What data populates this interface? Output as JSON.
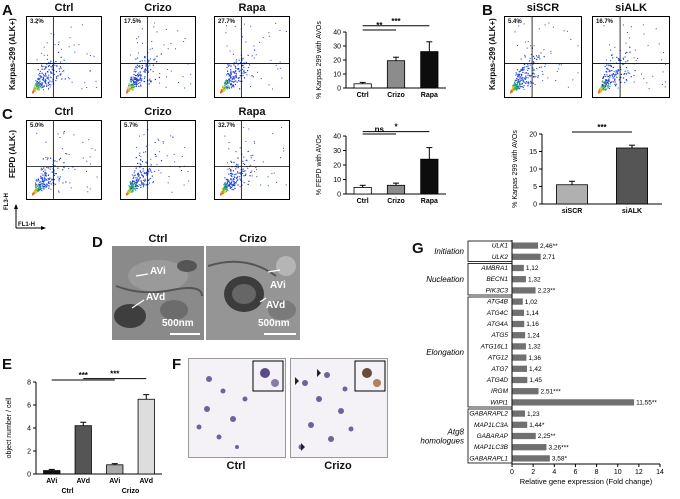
{
  "panels": {
    "A": {
      "label": "A",
      "ylabel": "Karpas-299 (ALK+)",
      "plots": [
        {
          "title": "Ctrl",
          "percent": "3.2%"
        },
        {
          "title": "Crizo",
          "percent": "17.5%"
        },
        {
          "title": "Rapa",
          "percent": "27.7%"
        }
      ]
    },
    "B": {
      "label": "B",
      "ylabel": "Karpas-299 (ALK+)",
      "plots": [
        {
          "title": "siSCR",
          "percent": "5.4%"
        },
        {
          "title": "siALK",
          "percent": "16.7%"
        }
      ]
    },
    "C": {
      "label": "C",
      "ylabel": "FEPD (ALK-)",
      "plots": [
        {
          "title": "Ctrl",
          "percent": "5.0%"
        },
        {
          "title": "Crizo",
          "percent": "5.7%"
        },
        {
          "title": "Rapa",
          "percent": "32.7%"
        }
      ]
    },
    "axes": {
      "y": "FL3-H",
      "x": "FL1-H"
    },
    "D": {
      "label": "D",
      "images": [
        {
          "title": "Ctrl",
          "arrow1": "AVi",
          "arrow2": "AVd",
          "scale": "500nm"
        },
        {
          "title": "Crizo",
          "arrow1": "AVi",
          "arrow2": "AVd",
          "scale": "500nm"
        }
      ]
    },
    "E": {
      "label": "E"
    },
    "F": {
      "label": "F",
      "images": [
        {
          "title": "Ctrl"
        },
        {
          "title": "Crizo"
        }
      ]
    },
    "G": {
      "label": "G"
    }
  },
  "chart_data": [
    {
      "id": "A",
      "type": "bar",
      "categories": [
        "Ctrl",
        "Crizo",
        "Rapa"
      ],
      "values": [
        3,
        19.5,
        26
      ],
      "errors": [
        1,
        2.5,
        7
      ],
      "colors": [
        "#ffffff",
        "#8c8c8c",
        "#0d0d0d"
      ],
      "ylabel": "% Karpas 299 with AVOs",
      "ylim": [
        0,
        40
      ],
      "yticks": [
        0,
        10,
        20,
        30,
        40
      ],
      "significance": [
        {
          "from": 0,
          "to": 1,
          "label": "**"
        },
        {
          "from": 0,
          "to": 2,
          "label": "***"
        }
      ]
    },
    {
      "id": "B",
      "type": "bar",
      "categories": [
        "siSCR",
        "siALK"
      ],
      "values": [
        5.5,
        16
      ],
      "errors": [
        1,
        0.8
      ],
      "colors": [
        "#b0b0b0",
        "#555555"
      ],
      "ylabel": "% Karpas 299 with AVOs",
      "ylim": [
        0,
        20
      ],
      "yticks": [
        0,
        5,
        10,
        15,
        20
      ],
      "significance": [
        {
          "from": 0,
          "to": 1,
          "label": "***"
        }
      ]
    },
    {
      "id": "C",
      "type": "bar",
      "categories": [
        "Ctrl",
        "Crizo",
        "Rapa"
      ],
      "values": [
        4.5,
        6,
        24
      ],
      "errors": [
        1.5,
        1.5,
        8
      ],
      "colors": [
        "#ffffff",
        "#8c8c8c",
        "#0d0d0d"
      ],
      "ylabel": "% FEPD with AVOs",
      "ylim": [
        0,
        40
      ],
      "yticks": [
        0,
        10,
        20,
        30,
        40
      ],
      "significance": [
        {
          "from": 0,
          "to": 1,
          "label": "ns"
        },
        {
          "from": 0,
          "to": 2,
          "label": "*"
        }
      ]
    },
    {
      "id": "E",
      "type": "bar",
      "categories": [
        "AVi",
        "AVd",
        "AVi",
        "AVd"
      ],
      "groups": [
        "Ctrl",
        "Crizo"
      ],
      "values": [
        0.3,
        4.2,
        0.8,
        6.5
      ],
      "errors": [
        0.1,
        0.3,
        0.1,
        0.4
      ],
      "colors": [
        "#111111",
        "#555555",
        "#aaaaaa",
        "#dddddd"
      ],
      "ylabel": "object number / cell",
      "ylim": [
        0,
        8
      ],
      "yticks": [
        0,
        2,
        4,
        6,
        8
      ],
      "significance": [
        {
          "from": 0,
          "to": 2,
          "label": "***"
        },
        {
          "from": 1,
          "to": 3,
          "label": "***"
        }
      ]
    },
    {
      "id": "G",
      "type": "bar",
      "orientation": "horizontal",
      "xlabel": "Relative gene expression (Fold change)",
      "xlim": [
        0,
        14
      ],
      "xticks": [
        0,
        2,
        4,
        6,
        8,
        10,
        12,
        14
      ],
      "groups": [
        {
          "name": "Initiation",
          "genes": [
            0,
            1
          ]
        },
        {
          "name": "Nucleation",
          "genes": [
            2,
            3,
            4
          ]
        },
        {
          "name": "Elongation",
          "genes": [
            5,
            6,
            7,
            8,
            9,
            10,
            11,
            12,
            13,
            14
          ]
        },
        {
          "name": "Atg8 homologues",
          "genes": [
            15,
            16,
            17,
            18,
            19
          ]
        }
      ],
      "genes": [
        "ULK1",
        "ULK2",
        "AMBRA1",
        "BECN1",
        "PIK3C3",
        "ATG4B",
        "ATG4C",
        "ATG4A",
        "ATG5",
        "ATG16L1",
        "ATG12",
        "ATG7",
        "ATG4D",
        "IRGM",
        "WIPI1",
        "GABARAPL2",
        "MAP1LC3A",
        "GABARAP",
        "MAP1LC3B",
        "GABARAPL1"
      ],
      "values": [
        2.46,
        2.71,
        1.12,
        1.32,
        2.23,
        1.02,
        1.14,
        1.16,
        1.24,
        1.32,
        1.36,
        1.42,
        1.45,
        2.51,
        11.55,
        1.23,
        1.44,
        2.25,
        3.26,
        3.58
      ],
      "value_labels": [
        "2,46",
        "2,71",
        "1,12",
        "1,32",
        "2,23",
        "1,02",
        "1,14",
        "1,16",
        "1,24",
        "1,32",
        "1,36",
        "1,42",
        "1,45",
        "2,51",
        "11,55",
        "1,23",
        "1,44",
        "2,25",
        "3,26",
        "3,58"
      ],
      "stars": [
        "**",
        "",
        "",
        "",
        "**",
        "",
        "",
        "",
        "",
        "",
        "",
        "",
        "",
        "***",
        "**",
        "",
        "*",
        "**",
        "***",
        "*"
      ]
    }
  ]
}
